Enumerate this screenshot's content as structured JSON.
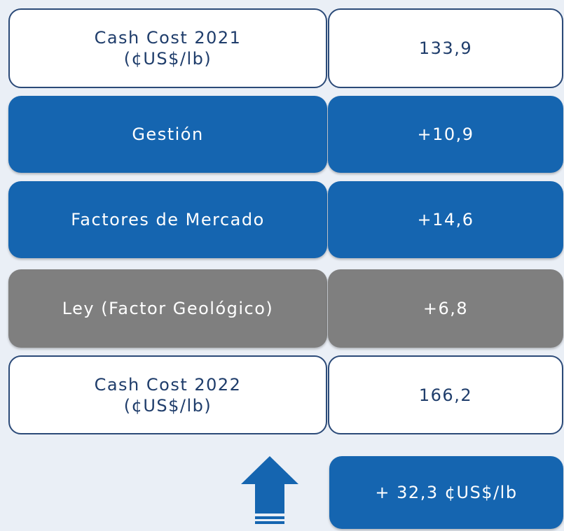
{
  "rows": [
    {
      "label": [
        "Cash Cost 2021",
        "(¢US$/lb)"
      ],
      "value": "133,9",
      "style": "white"
    },
    {
      "label": [
        "Gestión"
      ],
      "value": "+10,9",
      "style": "blue"
    },
    {
      "label": [
        "Factores de Mercado"
      ],
      "value": "+14,6",
      "style": "blue"
    },
    {
      "label": [
        "Ley (Factor Geológico)"
      ],
      "value": "+6,8",
      "style": "grey"
    },
    {
      "label": [
        "Cash Cost 2022",
        "(¢US$/lb)"
      ],
      "value": "166,2",
      "style": "white"
    }
  ],
  "summary": "+ 32,3 ¢US$/lb"
}
